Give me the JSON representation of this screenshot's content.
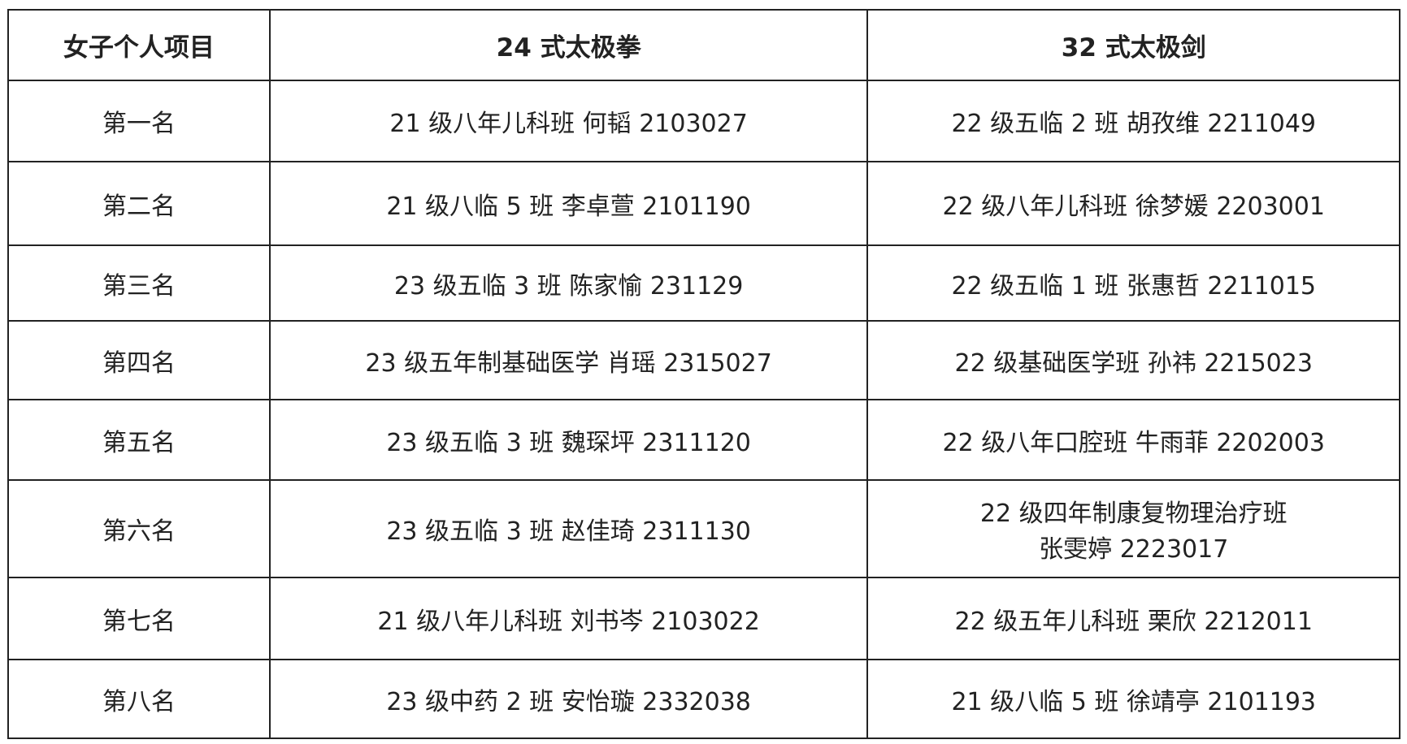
{
  "headers": [
    "女子个人项目",
    "24 式太极拳",
    "32 式太极剑"
  ],
  "rows": [
    {
      "rank": "第一名",
      "taijiquan_24": "21 级八年儿科班  何韬  2103027",
      "taijijian_32": "22 级五临 2 班  胡孜维  2211049"
    },
    {
      "rank": "第二名",
      "taijiquan_24": "21 级八临 5 班  李卓萱  2101190",
      "taijijian_32": "22 级八年儿科班  徐梦媛  2203001"
    },
    {
      "rank": "第三名",
      "taijiquan_24": "23 级五临 3 班   陈家愉  231129",
      "taijijian_32": "22 级五临 1 班  张惠哲  2211015"
    },
    {
      "rank": "第四名",
      "taijiquan_24": "23 级五年制基础医学  肖瑶  2315027",
      "taijijian_32": "22 级基础医学班  孙祎  2215023"
    },
    {
      "rank": "第五名",
      "taijiquan_24": "23 级五临 3 班  魏琛坪  2311120",
      "taijijian_32": "22 级八年口腔班  牛雨菲  2202003"
    },
    {
      "rank": "第六名",
      "taijiquan_24": "23 级五临 3 班  赵佳琦  2311130",
      "taijijian_32": "22 级四年制康复物理治疗班",
      "taijijian_32_line2": "张雯婷  2223017"
    },
    {
      "rank": "第七名",
      "taijiquan_24": "21 级八年儿科班  刘书岑  2103022",
      "taijijian_32": "22 级五年儿科班  栗欣  2212011"
    },
    {
      "rank": "第八名",
      "taijiquan_24": "23 级中药 2 班  安怡璇  2332038",
      "taijijian_32": "21 级八临 5 班  徐靖亭  2101193"
    }
  ]
}
